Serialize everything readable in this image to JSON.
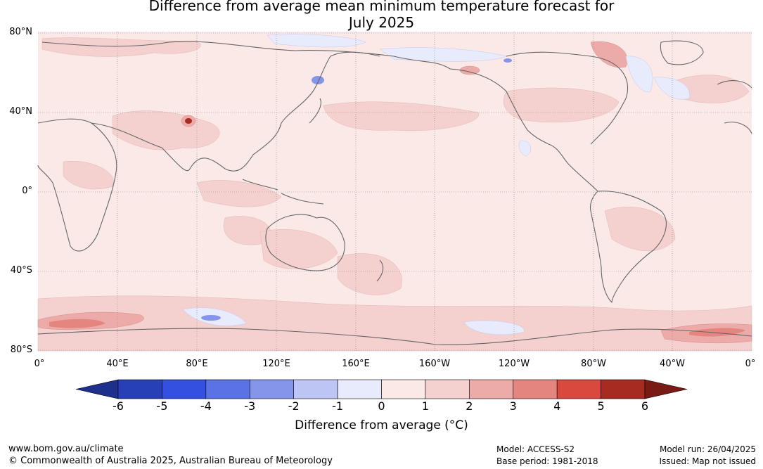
{
  "title_line1": "Difference from average mean minimum temperature forecast for",
  "title_line2": "July 2025",
  "lat_labels": [
    "80°N",
    "40°N",
    "0°",
    "40°S",
    "80°S"
  ],
  "lon_labels": [
    "0°",
    "40°E",
    "80°E",
    "120°E",
    "160°E",
    "160°W",
    "120°W",
    "80°W",
    "40°W",
    "0°"
  ],
  "colorbar": {
    "ticks": [
      "-6",
      "-5",
      "-4",
      "-3",
      "-2",
      "-1",
      "0",
      "1",
      "2",
      "3",
      "4",
      "5",
      "6"
    ],
    "colors": [
      "#1e2f8c",
      "#2740b8",
      "#3450e0",
      "#5a72e6",
      "#8596ea",
      "#bcc5f3",
      "#e8ebfb",
      "#fbe9e8",
      "#f4d0cf",
      "#ecaaa8",
      "#e58580",
      "#d9493e",
      "#a82b22",
      "#7a1a14"
    ],
    "title": "Difference from average (°C)"
  },
  "colors": {
    "warm_light": "#fbe9e8",
    "warm_mid": "#f4d0cf",
    "warm_strong": "#ecaaa8",
    "cool_light": "#e8ebfb",
    "coast": "#666666"
  },
  "footer": {
    "website": "www.bom.gov.au/climate",
    "copyright": "© Commonwealth of Australia 2025, Australian Bureau of Meteorology",
    "model": "Model: ACCESS-S2",
    "base_period": "Base period: 1981-2018",
    "model_run": "Model run: 26/04/2025",
    "issued": "Issued: Map not issued"
  }
}
